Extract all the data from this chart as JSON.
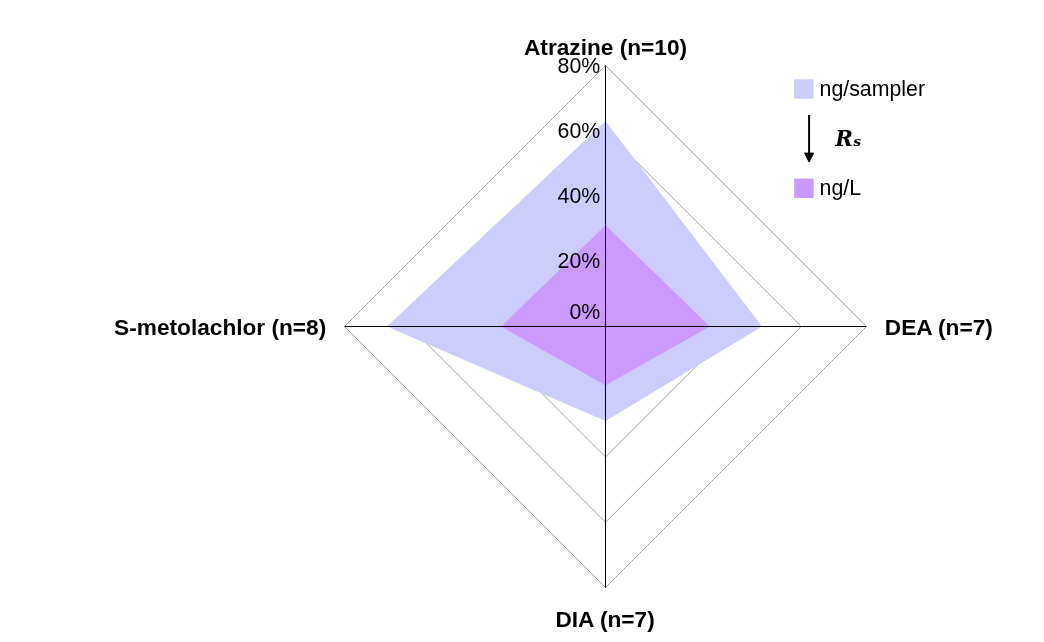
{
  "chart_data": {
    "type": "radar",
    "categories": [
      "Atrazine (n=10)",
      "DEA (n=7)",
      "DIA (n=7)",
      "S-metolachlor (n=8)"
    ],
    "series": [
      {
        "name": "ng/sampler",
        "color": "#ccccff",
        "values": [
          63,
          48,
          29,
          67
        ]
      },
      {
        "name": "ng/L",
        "color": "#cc99ff",
        "values": [
          31,
          32,
          18,
          32
        ]
      }
    ],
    "ylim": [
      0,
      80
    ],
    "yticks": [
      {
        "value": 0,
        "label": "0%"
      },
      {
        "value": 20,
        "label": "20%"
      },
      {
        "value": 40,
        "label": "40%"
      },
      {
        "value": 60,
        "label": "60%"
      },
      {
        "value": 80,
        "label": "80%"
      }
    ],
    "legend": "top right",
    "annotations": [
      "Rₛ"
    ]
  }
}
